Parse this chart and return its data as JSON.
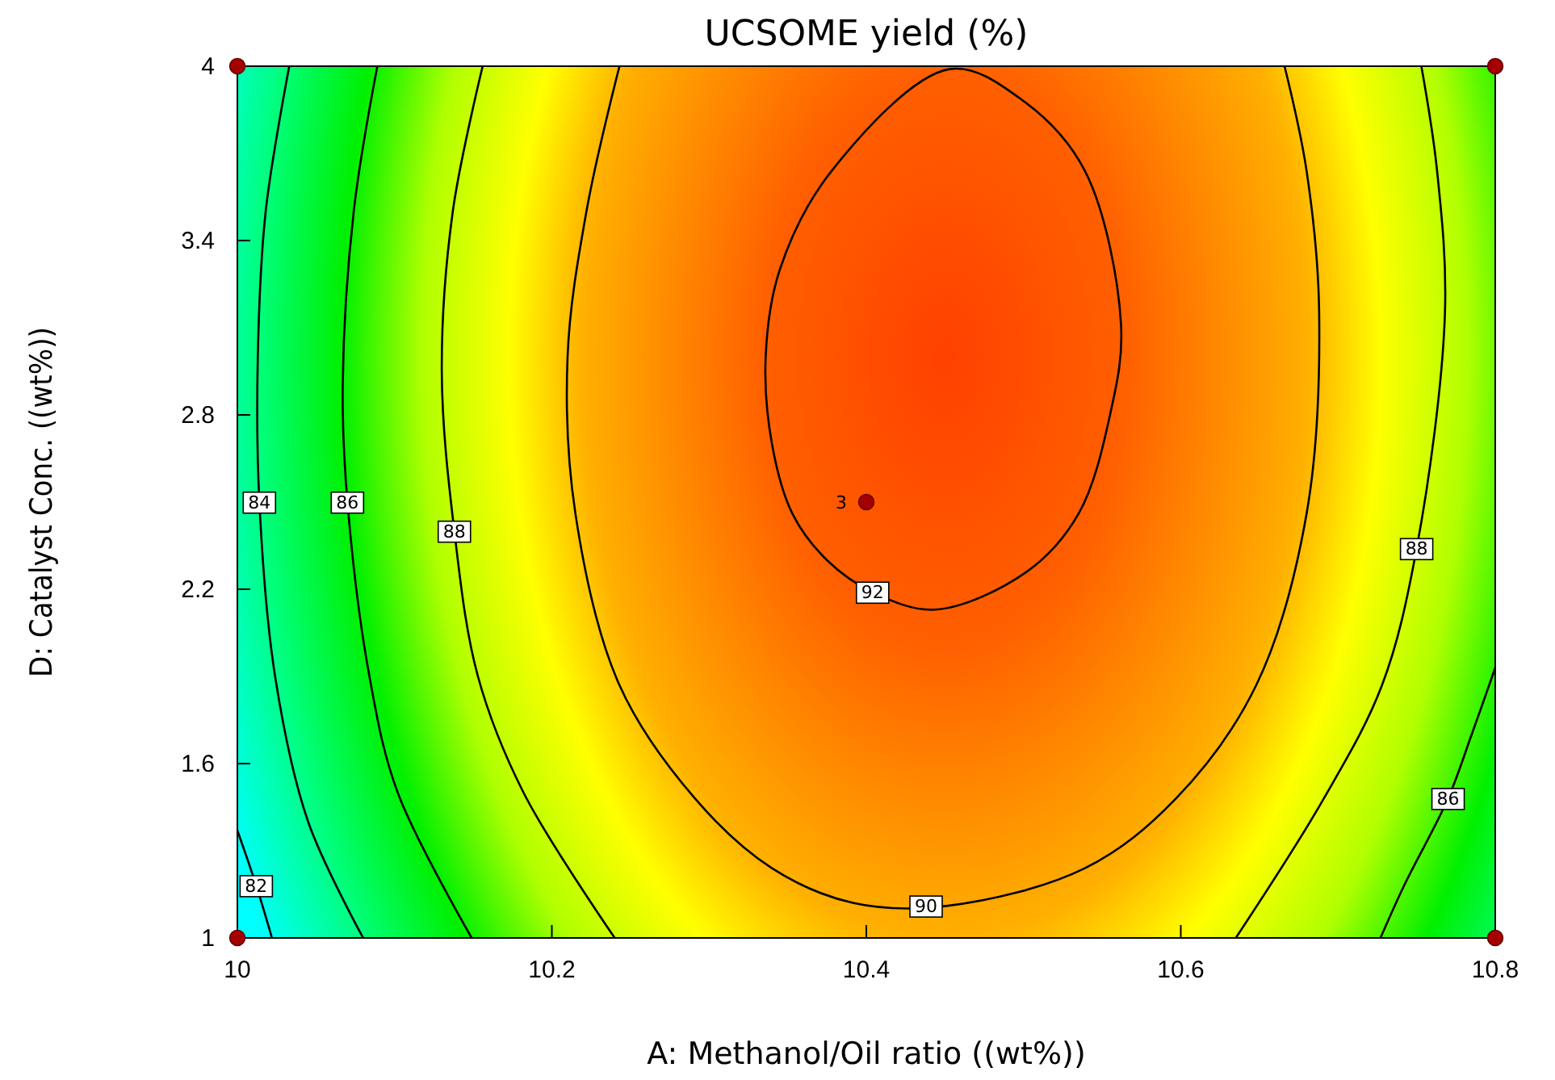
{
  "chart_data": {
    "type": "line",
    "title": "UCSOME yield (%)",
    "xlabel": "A: Methanol/Oil ratio ((wt%))",
    "ylabel": "D: Catalyst Conc. ((wt%))",
    "xlim": [
      10,
      10.8
    ],
    "ylim": [
      1,
      4
    ],
    "xticks": [
      10,
      10.2,
      10.4,
      10.6,
      10.8
    ],
    "yticks": [
      1,
      1.6,
      2.2,
      2.8,
      3.4,
      4
    ],
    "line_style": "solid",
    "series": [
      {
        "color": "#000000",
        "x": [
          10,
          10.012,
          10.022
        ],
        "values": [
          1.37,
          1.18,
          1.0
        ]
      },
      {
        "color": "#000000",
        "x": [
          10.033,
          10.018,
          10.013,
          10.014,
          10.024,
          10.045,
          10.08
        ],
        "values": [
          4,
          3.5,
          3.0,
          2.5,
          1.9,
          1.4,
          1.0
        ]
      },
      {
        "color": "#000000",
        "x": [
          10.089,
          10.074,
          10.067,
          10.07,
          10.084,
          10.102,
          10.149
        ],
        "values": [
          4,
          3.5,
          2.9,
          2.5,
          1.9,
          1.5,
          1.0
        ]
      },
      {
        "color": "#000000",
        "x": [
          10.156,
          10.137,
          10.13,
          10.138,
          10.153,
          10.182,
          10.24
        ],
        "values": [
          4,
          3.5,
          2.95,
          2.4,
          1.9,
          1.5,
          1.0
        ]
      },
      {
        "color": "#000000",
        "x": [
          10.243,
          10.222,
          10.21,
          10.215,
          10.243,
          10.291,
          10.34,
          10.392,
          10.451,
          10.539,
          10.597,
          10.648,
          10.68,
          10.688,
          10.68,
          10.666
        ],
        "values": [
          4,
          3.5,
          3.0,
          2.46,
          1.87,
          1.48,
          1.24,
          1.12,
          1.11,
          1.24,
          1.48,
          1.87,
          2.46,
          3.15,
          3.64,
          4
        ]
      },
      {
        "color": "#000000",
        "x": [
          10.753,
          10.763,
          10.768,
          10.75,
          10.728,
          10.691,
          10.635
        ],
        "values": [
          4,
          3.64,
          3.15,
          2.34,
          1.87,
          1.48,
          1.0
        ]
      },
      {
        "color": "#000000",
        "x": [
          10.8,
          10.785,
          10.77,
          10.742,
          10.727
        ],
        "values": [
          1.93,
          1.7,
          1.48,
          1.18,
          1.0
        ]
      },
      {
        "type": "scatter",
        "marker": "circle",
        "color": "#a50000",
        "x": [
          10,
          10,
          10.8,
          10.8,
          10.4
        ],
        "values": [
          1,
          4,
          1,
          4,
          2.5
        ]
      }
    ],
    "annotations": [
      {
        "text": "82",
        "x": 10.012,
        "y": 1.18
      },
      {
        "text": "84",
        "x": 10.014,
        "y": 2.5
      },
      {
        "text": "86",
        "x": 10.07,
        "y": 2.5
      },
      {
        "text": "88",
        "x": 10.138,
        "y": 2.4
      },
      {
        "text": "90",
        "x": 10.438,
        "y": 1.11
      },
      {
        "text": "92",
        "x": 10.404,
        "y": 2.19
      },
      {
        "text": "88",
        "x": 10.75,
        "y": 2.34
      },
      {
        "text": "86",
        "x": 10.77,
        "y": 1.48
      },
      {
        "text": "3",
        "x": 10.4,
        "y": 2.5
      }
    ]
  }
}
